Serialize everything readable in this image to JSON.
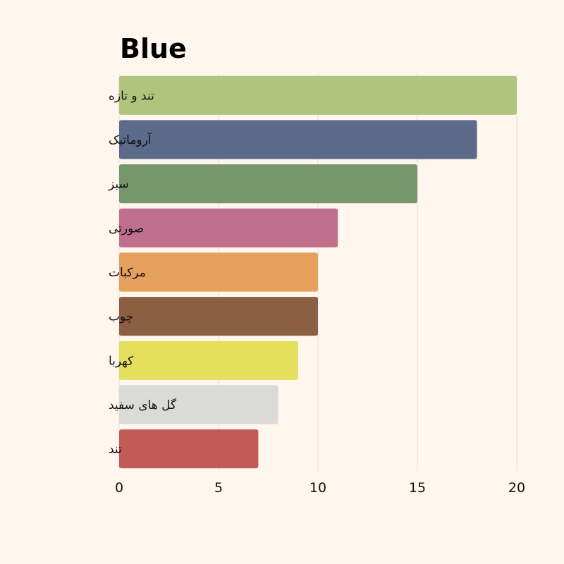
{
  "chart_data": {
    "type": "bar",
    "orientation": "horizontal",
    "title": "Blue",
    "xlabel": "",
    "ylabel": "",
    "xlim": [
      0,
      20
    ],
    "x_ticks": [
      "0",
      "5",
      "10",
      "15",
      "20"
    ],
    "grid": true,
    "categories": [
      "تند و تازه",
      "آروماتیک",
      "سبز",
      "صورتی",
      "مرکبات",
      "چوب",
      "کهربا",
      "گل های سفید",
      "تند"
    ],
    "values": [
      20,
      18,
      15,
      11,
      10,
      10,
      9,
      8,
      7
    ],
    "colors": [
      "#b0c47f",
      "#5c6b8a",
      "#76976b",
      "#c06f8d",
      "#e6a05d",
      "#8b5f41",
      "#e5df5e",
      "#dadad8",
      "#c25a58"
    ]
  }
}
